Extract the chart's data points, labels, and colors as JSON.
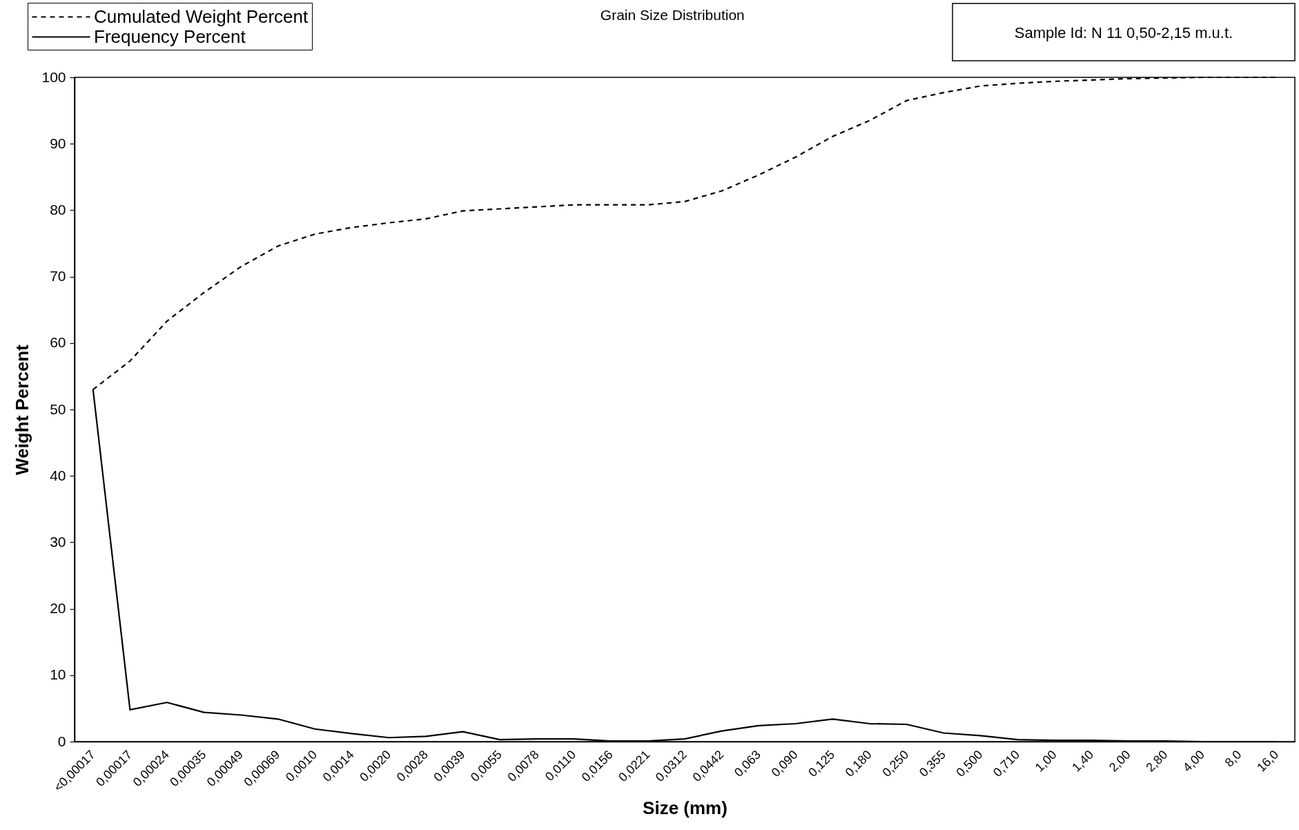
{
  "chart_data": {
    "type": "line",
    "title": "Grain Size Distribution",
    "xlabel": "Size  (mm)",
    "ylabel": "Weight Percent",
    "categories": [
      "<0,00017",
      "0,00017",
      "0,00024",
      "0,00035",
      "0,00049",
      "0,00069",
      "0,0010",
      "0,0014",
      "0,0020",
      "0,0028",
      "0,0039",
      "0,0055",
      "0,0078",
      "0,0110",
      "0,0156",
      "0,0221",
      "0,0312",
      "0,0442",
      "0,063",
      "0,090",
      "0,125",
      "0,180",
      "0,250",
      "0,355",
      "0,500",
      "0,710",
      "1,00",
      "1,40",
      "2,00",
      "2,80",
      "4,00",
      "8,0",
      "16,0"
    ],
    "series": [
      {
        "name": "Cumulated Weight Percent",
        "color": "#000000",
        "line_style": "dashed",
        "values": [
          53,
          57.3,
          63.3,
          67.6,
          71.5,
          74.6,
          76.4,
          77.4,
          78.1,
          78.7,
          79.9,
          80.2,
          80.5,
          80.8,
          80.8,
          80.8,
          81.3,
          82.9,
          85.3,
          88.0,
          91.1,
          93.5,
          96.5,
          97.7,
          98.7,
          99.1,
          99.4,
          99.6,
          99.8,
          99.9,
          100,
          100,
          100
        ]
      },
      {
        "name": "Frequency Percent",
        "color": "#000000",
        "line_style": "solid",
        "values": [
          53,
          4.8,
          5.9,
          4.4,
          4.0,
          3.4,
          1.9,
          1.2,
          0.6,
          0.8,
          1.5,
          0.3,
          0.4,
          0.4,
          0.1,
          0.1,
          0.4,
          1.6,
          2.4,
          2.7,
          3.4,
          2.7,
          2.6,
          1.3,
          0.9,
          0.3,
          0.2,
          0.2,
          0.1,
          0.1,
          0,
          0,
          0
        ]
      }
    ],
    "ylim": [
      0,
      100
    ],
    "yticks": [
      0,
      10,
      20,
      30,
      40,
      50,
      60,
      70,
      80,
      90,
      100
    ],
    "legend": "top left",
    "annotations": [
      "Sample Id: N 11  0,50-2,15 m.u.t."
    ]
  }
}
